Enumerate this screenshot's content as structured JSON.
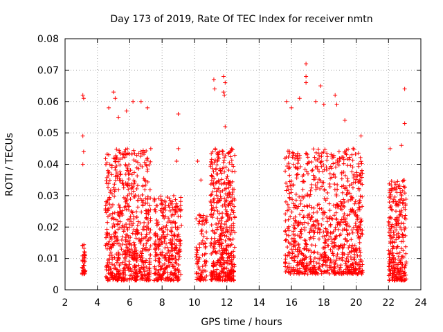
{
  "chart_data": {
    "type": "scatter",
    "title": "Day 173 of 2019, Rate Of TEC Index for receiver nmtn",
    "xlabel": "GPS time / hours",
    "ylabel": "ROTI / TECUs",
    "xlim": [
      2,
      24
    ],
    "ylim": [
      0,
      0.08
    ],
    "xticks": [
      2,
      4,
      6,
      8,
      10,
      12,
      14,
      16,
      18,
      20,
      22,
      24
    ],
    "yticks": [
      0,
      0.01,
      0.02,
      0.03,
      0.04,
      0.05,
      0.06,
      0.07,
      0.08
    ],
    "ytick_labels": [
      "0",
      "0.01",
      "0.02",
      "0.03",
      "0.04",
      "0.05",
      "0.06",
      "0.07",
      "0.08"
    ],
    "grid": true,
    "marker": "+",
    "color": "#ff0000",
    "clusters": [
      {
        "x_start": 3.05,
        "x_end": 3.25,
        "y_range": [
          0.005,
          0.015
        ],
        "density": 40
      },
      {
        "x_start": 4.5,
        "x_end": 7.3,
        "y_range": [
          0.003,
          0.045
        ],
        "density": 650
      },
      {
        "x_start": 7.5,
        "x_end": 9.2,
        "y_range": [
          0.003,
          0.03
        ],
        "density": 320
      },
      {
        "x_start": 10.1,
        "x_end": 10.8,
        "y_range": [
          0.003,
          0.025
        ],
        "density": 90
      },
      {
        "x_start": 11.0,
        "x_end": 12.5,
        "y_range": [
          0.003,
          0.045
        ],
        "density": 450
      },
      {
        "x_start": 15.6,
        "x_end": 20.4,
        "y_range": [
          0.005,
          0.045
        ],
        "density": 900
      },
      {
        "x_start": 22.0,
        "x_end": 23.1,
        "y_range": [
          0.003,
          0.035
        ],
        "density": 280
      }
    ],
    "points": [
      [
        3.1,
        0.062
      ],
      [
        3.15,
        0.061
      ],
      [
        3.1,
        0.049
      ],
      [
        3.15,
        0.044
      ],
      [
        3.1,
        0.04
      ],
      [
        4.7,
        0.058
      ],
      [
        5.0,
        0.063
      ],
      [
        5.1,
        0.061
      ],
      [
        5.3,
        0.055
      ],
      [
        5.8,
        0.057
      ],
      [
        6.2,
        0.06
      ],
      [
        6.7,
        0.06
      ],
      [
        7.1,
        0.058
      ],
      [
        9.0,
        0.056
      ],
      [
        10.2,
        0.041
      ],
      [
        11.2,
        0.067
      ],
      [
        11.25,
        0.064
      ],
      [
        11.8,
        0.068
      ],
      [
        11.9,
        0.066
      ],
      [
        11.8,
        0.063
      ],
      [
        11.85,
        0.062
      ],
      [
        11.9,
        0.052
      ],
      [
        15.7,
        0.06
      ],
      [
        16.0,
        0.058
      ],
      [
        16.5,
        0.061
      ],
      [
        16.9,
        0.072
      ],
      [
        16.9,
        0.068
      ],
      [
        16.9,
        0.066
      ],
      [
        17.5,
        0.06
      ],
      [
        17.8,
        0.065
      ],
      [
        18.0,
        0.059
      ],
      [
        18.7,
        0.062
      ],
      [
        18.8,
        0.059
      ],
      [
        19.3,
        0.054
      ],
      [
        20.3,
        0.049
      ],
      [
        22.8,
        0.046
      ],
      [
        23.0,
        0.064
      ],
      [
        23.0,
        0.053
      ],
      [
        20.2,
        0.035
      ],
      [
        9.0,
        0.045
      ],
      [
        7.3,
        0.045
      ],
      [
        8.9,
        0.041
      ],
      [
        12.3,
        0.045
      ],
      [
        10.4,
        0.035
      ],
      [
        22.1,
        0.045
      ]
    ]
  }
}
